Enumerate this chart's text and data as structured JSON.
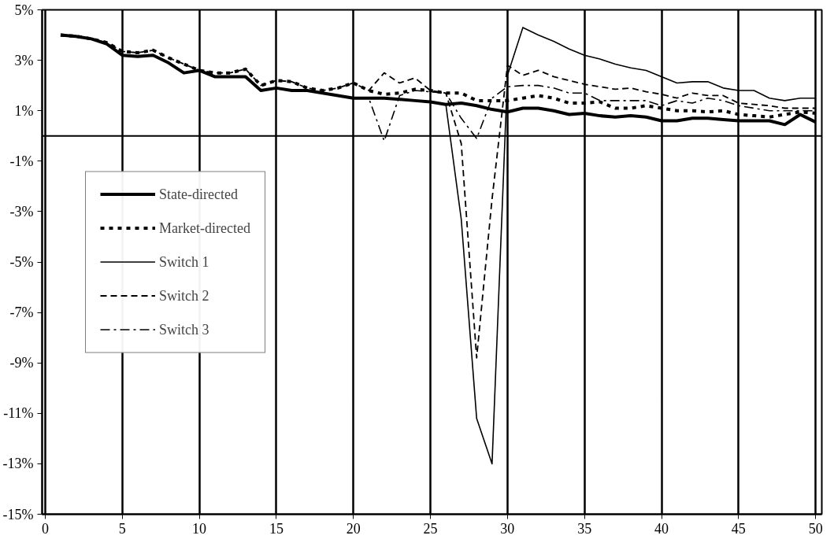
{
  "chart_data": {
    "type": "line",
    "x": [
      1,
      2,
      3,
      4,
      5,
      6,
      7,
      8,
      9,
      10,
      11,
      12,
      13,
      14,
      15,
      16,
      17,
      18,
      19,
      20,
      21,
      22,
      23,
      24,
      25,
      26,
      27,
      28,
      29,
      30,
      31,
      32,
      33,
      34,
      35,
      36,
      37,
      38,
      39,
      40,
      41,
      42,
      43,
      44,
      45,
      46,
      47,
      48,
      49,
      50
    ],
    "series": [
      {
        "name": "State-directed",
        "color": "#000000",
        "line_style": "solid",
        "values": [
          4.0,
          3.95,
          3.85,
          3.65,
          3.2,
          3.15,
          3.2,
          2.9,
          2.5,
          2.6,
          2.35,
          2.35,
          2.35,
          1.8,
          1.9,
          1.8,
          1.8,
          1.7,
          1.6,
          1.5,
          1.5,
          1.5,
          1.45,
          1.4,
          1.35,
          1.25,
          1.3,
          1.2,
          1.05,
          0.95,
          1.1,
          1.1,
          1.0,
          0.85,
          0.9,
          0.8,
          0.75,
          0.8,
          0.75,
          0.6,
          0.6,
          0.7,
          0.7,
          0.65,
          0.6,
          0.6,
          0.6,
          0.45,
          0.85,
          0.55
        ]
      },
      {
        "name": "Market-directed",
        "color": "#000000",
        "line_style": "dotted",
        "values": [
          4.0,
          3.95,
          3.85,
          3.7,
          3.35,
          3.3,
          3.4,
          3.1,
          2.85,
          2.6,
          2.5,
          2.5,
          2.65,
          2.0,
          2.2,
          2.15,
          1.9,
          1.8,
          1.9,
          2.1,
          1.8,
          1.65,
          1.7,
          1.85,
          1.8,
          1.7,
          1.7,
          1.4,
          1.4,
          1.4,
          1.5,
          1.6,
          1.5,
          1.3,
          1.3,
          1.35,
          1.1,
          1.1,
          1.2,
          1.1,
          1.0,
          1.0,
          0.95,
          1.0,
          0.85,
          0.8,
          0.75,
          0.85,
          0.95,
          0.9
        ]
      },
      {
        "name": "Switch 1",
        "color": "#000000",
        "line_style": "solid",
        "values": [
          4.0,
          3.95,
          3.85,
          3.65,
          3.2,
          3.15,
          3.2,
          2.9,
          2.5,
          2.6,
          2.35,
          2.35,
          2.35,
          1.8,
          1.9,
          1.8,
          1.8,
          1.7,
          1.6,
          1.5,
          1.5,
          1.5,
          1.45,
          1.4,
          1.35,
          1.25,
          -3.3,
          -11.2,
          -13.0,
          2.4,
          4.3,
          4.0,
          3.75,
          3.45,
          3.2,
          3.05,
          2.85,
          2.7,
          2.6,
          2.35,
          2.1,
          2.15,
          2.15,
          1.9,
          1.8,
          1.8,
          1.5,
          1.4,
          1.5,
          1.5
        ]
      },
      {
        "name": "Switch 2",
        "color": "#000000",
        "line_style": "dashed",
        "values": [
          4.0,
          3.95,
          3.85,
          3.7,
          3.35,
          3.3,
          3.4,
          3.1,
          2.85,
          2.6,
          2.5,
          2.5,
          2.65,
          2.0,
          2.2,
          2.15,
          1.9,
          1.8,
          1.9,
          2.1,
          1.8,
          2.5,
          2.1,
          2.3,
          1.8,
          1.7,
          -0.3,
          -8.8,
          -2.5,
          2.8,
          2.4,
          2.6,
          2.35,
          2.2,
          2.05,
          1.95,
          1.85,
          1.9,
          1.75,
          1.65,
          1.5,
          1.7,
          1.6,
          1.6,
          1.3,
          1.25,
          1.2,
          1.1,
          1.1,
          1.1
        ]
      },
      {
        "name": "Switch 3",
        "color": "#000000",
        "line_style": "dashdot",
        "values": [
          4.0,
          3.95,
          3.85,
          3.65,
          3.2,
          3.15,
          3.2,
          2.9,
          2.5,
          2.6,
          2.35,
          2.35,
          2.35,
          1.8,
          1.9,
          1.8,
          1.8,
          1.7,
          1.6,
          1.5,
          1.5,
          -0.2,
          1.6,
          1.8,
          1.75,
          1.7,
          0.7,
          -0.1,
          1.5,
          1.95,
          2.0,
          2.0,
          1.9,
          1.7,
          1.7,
          1.4,
          1.4,
          1.4,
          1.4,
          1.2,
          1.4,
          1.3,
          1.5,
          1.4,
          1.2,
          1.1,
          1.0,
          1.0,
          1.0,
          1.0
        ]
      }
    ],
    "xlim": [
      -0.2,
      50.4
    ],
    "xticks": [
      0,
      5,
      10,
      15,
      20,
      25,
      30,
      35,
      40,
      45,
      50
    ],
    "ylim": [
      -15,
      5
    ],
    "yticks": [
      {
        "value": -15,
        "label": "-15%"
      },
      {
        "value": -13,
        "label": "-13%"
      },
      {
        "value": -11,
        "label": "-11%"
      },
      {
        "value": -9,
        "label": "-9%"
      },
      {
        "value": -7,
        "label": "-7%"
      },
      {
        "value": -5,
        "label": "-5%"
      },
      {
        "value": -3,
        "label": "-3%"
      },
      {
        "value": -1,
        "label": "-1%"
      },
      {
        "value": 1,
        "label": "1%"
      },
      {
        "value": 3,
        "label": "3%"
      },
      {
        "value": 5,
        "label": "5%"
      }
    ],
    "ref_lines": [
      {
        "axis": "y",
        "value": 0
      }
    ],
    "grid": "x",
    "legend": "left"
  }
}
